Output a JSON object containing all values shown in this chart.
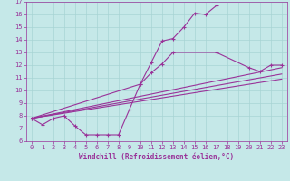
{
  "xlabel": "Windchill (Refroidissement éolien,°C)",
  "bg_color": "#c5e8e8",
  "grid_color": "#a8d4d4",
  "line_color": "#993399",
  "xlim": [
    -0.5,
    23.5
  ],
  "ylim": [
    6,
    17
  ],
  "xticks": [
    0,
    1,
    2,
    3,
    4,
    5,
    6,
    7,
    8,
    9,
    10,
    11,
    12,
    13,
    14,
    15,
    16,
    17,
    18,
    19,
    20,
    21,
    22,
    23
  ],
  "yticks": [
    6,
    7,
    8,
    9,
    10,
    11,
    12,
    13,
    14,
    15,
    16,
    17
  ],
  "line1_x": [
    0,
    1,
    2,
    3,
    4,
    5,
    6,
    7,
    8,
    9,
    10,
    11,
    12,
    13,
    14,
    15,
    16,
    17
  ],
  "line1_y": [
    7.8,
    7.3,
    7.8,
    8.0,
    7.2,
    6.5,
    6.5,
    6.5,
    6.5,
    8.5,
    10.5,
    12.2,
    13.9,
    14.1,
    15.0,
    16.1,
    16.0,
    16.7
  ],
  "line2_x": [
    0,
    10,
    11,
    12,
    13,
    17,
    20,
    21,
    22,
    23
  ],
  "line2_y": [
    7.8,
    10.5,
    11.4,
    12.1,
    13.0,
    13.0,
    11.8,
    11.5,
    12.0,
    12.0
  ],
  "trend1_x": [
    0,
    23
  ],
  "trend1_y": [
    7.8,
    11.8
  ],
  "trend2_x": [
    0,
    23
  ],
  "trend2_y": [
    7.8,
    11.3
  ],
  "trend3_x": [
    0,
    23
  ],
  "trend3_y": [
    7.8,
    10.9
  ]
}
